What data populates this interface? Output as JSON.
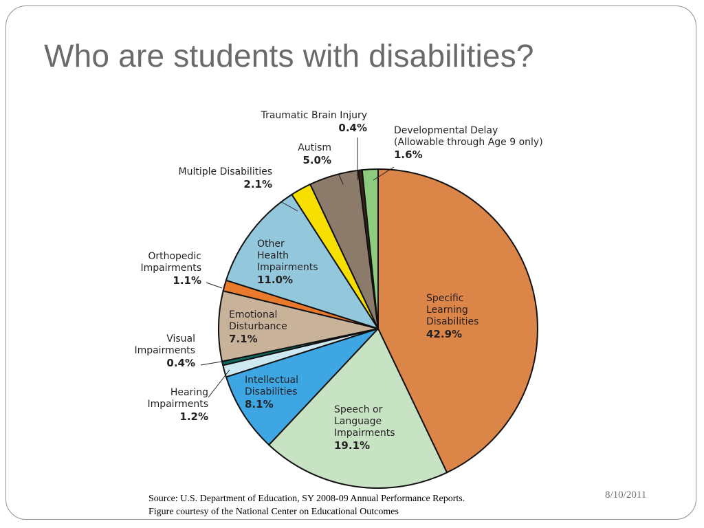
{
  "slide": {
    "title": "Who are students with disabilities?",
    "source_line1": "Source: U.S. Department of Education, SY 2008-09 Annual Performance Reports.",
    "source_line2": "Figure courtesy of the National Center on Educational Outcomes",
    "date": "8/10/2011"
  },
  "chart_data": {
    "type": "pie",
    "title": "",
    "unit": "%",
    "slices": [
      {
        "key": "sld",
        "label_lines": [
          "Specific",
          "Learning",
          "Disabilities"
        ],
        "value_label": "42.9%",
        "value": 42.9,
        "color": "#dc8549"
      },
      {
        "key": "sli",
        "label_lines": [
          "Speech or",
          "Language",
          "Impairments"
        ],
        "value_label": "19.1%",
        "value": 19.1,
        "color": "#c8e3c4"
      },
      {
        "key": "id",
        "label_lines": [
          "Intellectual",
          "Disabilities"
        ],
        "value_label": "8.1%",
        "value": 8.1,
        "color": "#3ea7e3"
      },
      {
        "key": "hi",
        "label_lines": [
          "Hearing",
          "Impairments"
        ],
        "value_label": "1.2%",
        "value": 1.2,
        "color": "#cfe9f3"
      },
      {
        "key": "vi",
        "label_lines": [
          "Visual",
          "Impairments"
        ],
        "value_label": "0.4%",
        "value": 0.4,
        "color": "#11675e"
      },
      {
        "key": "ed",
        "label_lines": [
          "Emotional",
          "Disturbance"
        ],
        "value_label": "7.1%",
        "value": 7.1,
        "color": "#c9b29a"
      },
      {
        "key": "oi",
        "label_lines": [
          "Orthopedic",
          "Impairments"
        ],
        "value_label": "1.1%",
        "value": 1.1,
        "color": "#ea7a2b"
      },
      {
        "key": "ohi",
        "label_lines": [
          "Other",
          "Health",
          "Impairments"
        ],
        "value_label": "11.0%",
        "value": 11.0,
        "color": "#93c8dc"
      },
      {
        "key": "md",
        "label_lines": [
          "Multiple Disabilities"
        ],
        "value_label": "2.1%",
        "value": 2.1,
        "color": "#f7df00"
      },
      {
        "key": "au",
        "label_lines": [
          "Autism"
        ],
        "value_label": "5.0%",
        "value": 5.0,
        "color": "#8c7b6b"
      },
      {
        "key": "tbi",
        "label_lines": [
          "Traumatic Brain Injury"
        ],
        "value_label": "0.4%",
        "value": 0.4,
        "color": "#3a2418"
      },
      {
        "key": "dd",
        "label_lines": [
          "Developmental Delay",
          "(Allowable through Age 9 only)"
        ],
        "value_label": "1.6%",
        "value": 1.6,
        "color": "#8dcc7f"
      }
    ]
  }
}
